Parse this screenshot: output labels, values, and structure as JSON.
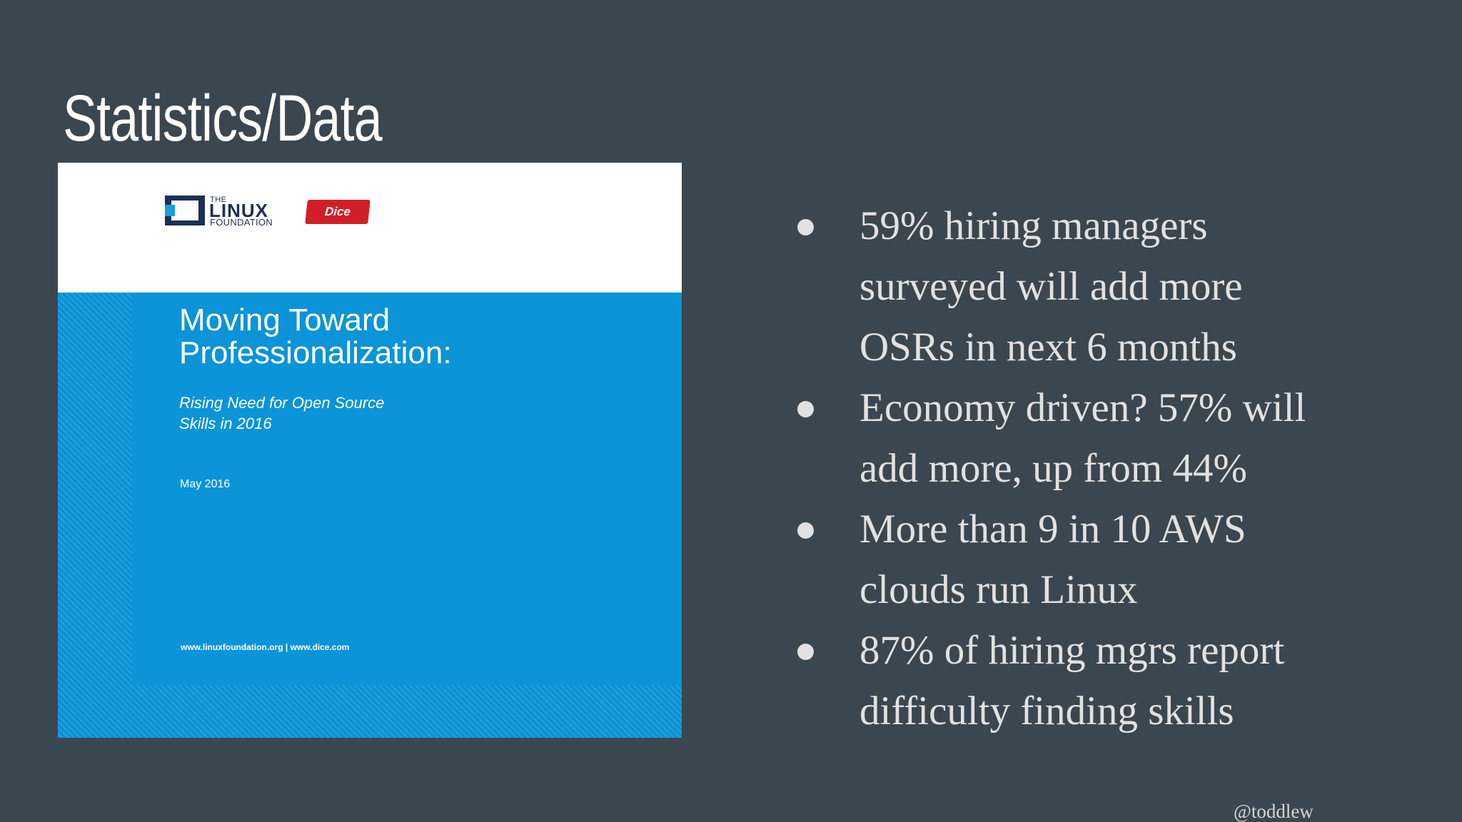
{
  "slide": {
    "title": "Statistics/Data",
    "handle": "@toddlew"
  },
  "cover": {
    "logo_the": "THE",
    "logo_linux": "LINUX",
    "logo_foundation": "FOUNDATION",
    "dice_label": "Dice",
    "heading_line1": "Moving Toward",
    "heading_line2": "Professionalization:",
    "subtitle_line1": "Rising Need for Open Source",
    "subtitle_line2": "Skills in 2016",
    "date": "May 2016",
    "urls": "www.linuxfoundation.org | www.dice.com",
    "colors": {
      "blue": "#0b94d7",
      "dice_red": "#d21f27",
      "lf_navy": "#1e2f55"
    }
  },
  "bullets": [
    {
      "line1": "59% hiring managers",
      "line2": "surveyed will add more",
      "line3": "OSRs in next 6 months"
    },
    {
      "line1": "Economy driven? 57% will",
      "line2": "add more, up from 44%",
      "line3": ""
    },
    {
      "line1": "More than 9 in 10 AWS",
      "line2": "clouds run Linux",
      "line3": ""
    },
    {
      "line1": "87% of hiring mgrs report",
      "line2": "difficulty finding skills",
      "line3": ""
    }
  ]
}
